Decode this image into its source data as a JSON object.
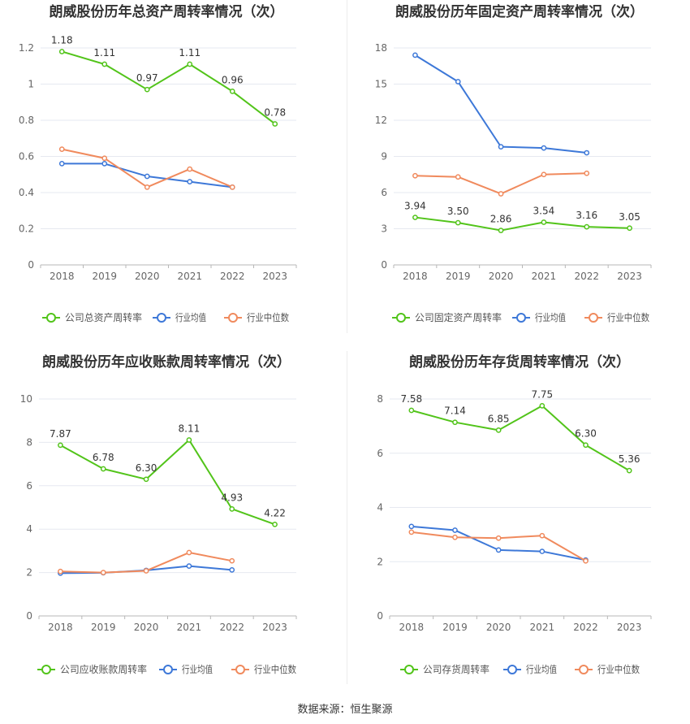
{
  "colors": {
    "company": "#52c41a",
    "industry_avg": "#3d78d8",
    "industry_median": "#f08a5d",
    "grid": "#e6e9f0",
    "axis": "#999999",
    "text": "#333333"
  },
  "footer": {
    "source": "数据来源：恒生聚源"
  },
  "chart_data": [
    {
      "type": "line",
      "title": "朗威股份历年总资产周转率情况（次）",
      "categories": [
        "2018",
        "2019",
        "2020",
        "2021",
        "2022",
        "2023"
      ],
      "ylim": [
        0,
        1.2
      ],
      "yticks": [
        "0",
        "0.2",
        "0.4",
        "0.6",
        "0.8",
        "1",
        "1.2"
      ],
      "series": [
        {
          "name": "公司总资产周转率",
          "role": "company",
          "values": [
            1.18,
            1.11,
            0.97,
            1.11,
            0.96,
            0.78
          ],
          "labels": [
            "1.18",
            "1.11",
            "0.97",
            "1.11",
            "0.96",
            "0.78"
          ]
        },
        {
          "name": "行业均值",
          "role": "industry_avg",
          "values": [
            0.56,
            0.56,
            0.49,
            0.46,
            0.43,
            null
          ]
        },
        {
          "name": "行业中位数",
          "role": "industry_median",
          "values": [
            0.64,
            0.59,
            0.43,
            0.53,
            0.43,
            null
          ]
        }
      ]
    },
    {
      "type": "line",
      "title": "朗威股份历年固定资产周转率情况（次）",
      "categories": [
        "2018",
        "2019",
        "2020",
        "2021",
        "2022",
        "2023"
      ],
      "ylim": [
        0,
        18
      ],
      "yticks": [
        "0",
        "3",
        "6",
        "9",
        "12",
        "15",
        "18"
      ],
      "series": [
        {
          "name": "公司固定资产周转率",
          "role": "company",
          "values": [
            3.94,
            3.5,
            2.86,
            3.54,
            3.16,
            3.05
          ],
          "labels": [
            "3.94",
            "3.50",
            "2.86",
            "3.54",
            "3.16",
            "3.05"
          ]
        },
        {
          "name": "行业均值",
          "role": "industry_avg",
          "values": [
            17.4,
            15.2,
            9.8,
            9.7,
            9.3,
            null
          ]
        },
        {
          "name": "行业中位数",
          "role": "industry_median",
          "values": [
            7.4,
            7.3,
            5.9,
            7.5,
            7.6,
            null
          ]
        }
      ]
    },
    {
      "type": "line",
      "title": "朗威股份历年应收账款周转率情况（次）",
      "categories": [
        "2018",
        "2019",
        "2020",
        "2021",
        "2022",
        "2023"
      ],
      "ylim": [
        0,
        10
      ],
      "yticks": [
        "0",
        "2",
        "4",
        "6",
        "8",
        "10"
      ],
      "series": [
        {
          "name": "公司应收账款周转率",
          "role": "company",
          "values": [
            7.87,
            6.78,
            6.3,
            8.11,
            4.93,
            4.22
          ],
          "labels": [
            "7.87",
            "6.78",
            "6.30",
            "8.11",
            "4.93",
            "4.22"
          ]
        },
        {
          "name": "行业均值",
          "role": "industry_avg",
          "values": [
            1.97,
            1.99,
            2.1,
            2.3,
            2.12,
            null
          ]
        },
        {
          "name": "行业中位数",
          "role": "industry_median",
          "values": [
            2.05,
            2.0,
            2.08,
            2.92,
            2.54,
            null
          ]
        }
      ]
    },
    {
      "type": "line",
      "title": "朗威股份历年存货周转率情况（次）",
      "categories": [
        "2018",
        "2019",
        "2020",
        "2021",
        "2022",
        "2023"
      ],
      "ylim": [
        0,
        8
      ],
      "yticks": [
        "0",
        "2",
        "4",
        "6",
        "8"
      ],
      "series": [
        {
          "name": "公司存货周转率",
          "role": "company",
          "values": [
            7.58,
            7.14,
            6.85,
            7.75,
            6.3,
            5.36
          ],
          "labels": [
            "7.58",
            "7.14",
            "6.85",
            "7.75",
            "6.30",
            "5.36"
          ]
        },
        {
          "name": "行业均值",
          "role": "industry_avg",
          "values": [
            3.3,
            3.16,
            2.43,
            2.38,
            2.06,
            null
          ]
        },
        {
          "name": "行业中位数",
          "role": "industry_median",
          "values": [
            3.09,
            2.9,
            2.87,
            2.96,
            2.03,
            null
          ]
        }
      ]
    }
  ]
}
